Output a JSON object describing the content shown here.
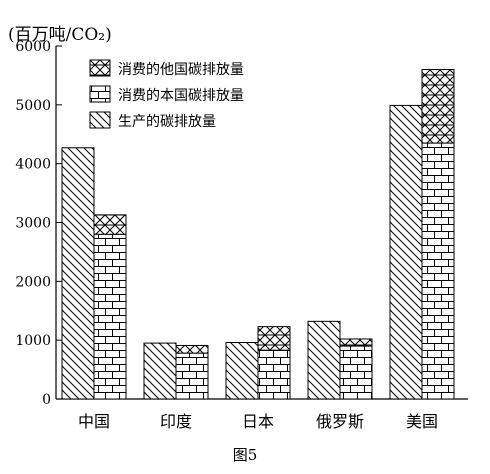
{
  "chart_data": {
    "type": "bar",
    "unit_label": "(百万吨/CO₂)",
    "caption": "图5",
    "categories": [
      "中国",
      "印度",
      "日本",
      "俄罗斯",
      "美国"
    ],
    "ylim": [
      0,
      6000
    ],
    "yticks": [
      0,
      1000,
      2000,
      3000,
      4000,
      5000,
      6000
    ],
    "grid": false,
    "legend_position": "top-left",
    "legend": [
      {
        "label": "消费的他国碳排放量",
        "pattern": "crosshatch"
      },
      {
        "label": "消费的本国碳排放量",
        "pattern": "brick"
      },
      {
        "label": "生产的碳排放量",
        "pattern": "diagonal"
      }
    ],
    "production": [
      4270,
      950,
      960,
      1320,
      4990
    ],
    "consumption_domestic": [
      2800,
      780,
      830,
      900,
      4350
    ],
    "consumption_foreign": [
      330,
      130,
      400,
      120,
      1250
    ]
  }
}
